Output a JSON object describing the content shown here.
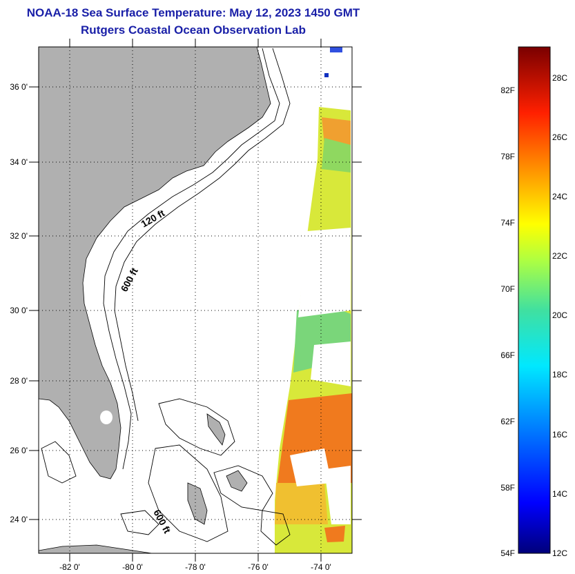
{
  "header": {
    "title": "NOAA-18 Sea Surface Temperature:  May 12, 2023 1450 GMT",
    "subtitle": "Rutgers Coastal Ocean Observation Lab"
  },
  "map": {
    "lat_labels": [
      "36 0'",
      "34 0'",
      "32 0'",
      "30 0'",
      "28 0'",
      "26 0'",
      "24 0'"
    ],
    "lon_labels": [
      "-82 0'",
      "-80 0'",
      "-78 0'",
      "-76 0'",
      "-74 0'"
    ],
    "contour_labels": [
      "120 ft",
      "600 ft",
      "600 ft"
    ],
    "colors": {
      "land": "#b0b0b0",
      "cloud": "#ffffff",
      "warm_water": "#f07a1e",
      "mid_water": "#d8e83a",
      "cool_water": "#5fd68a"
    }
  },
  "colorbar": {
    "fahrenheit_labels": [
      "82F",
      "78F",
      "74F",
      "70F",
      "66F",
      "62F",
      "58F",
      "54F"
    ],
    "celsius_labels": [
      "28C",
      "26C",
      "24C",
      "22C",
      "20C",
      "18C",
      "16C",
      "14C",
      "12C"
    ]
  }
}
